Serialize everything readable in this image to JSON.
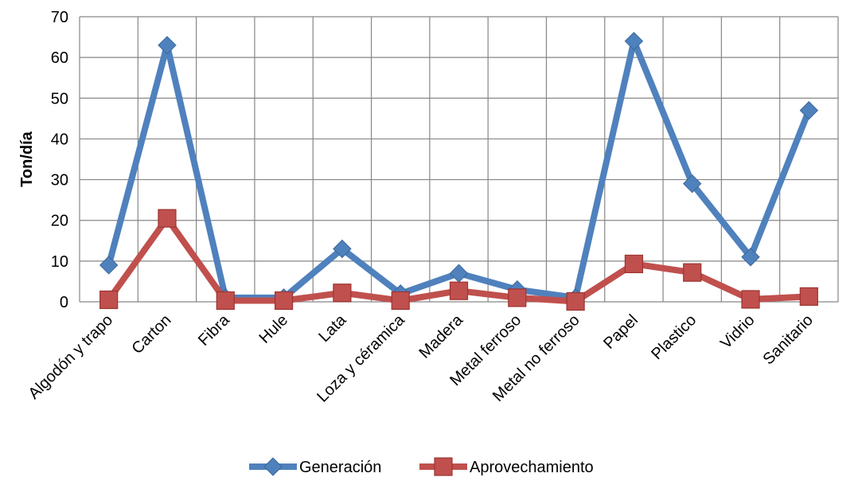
{
  "chart_data": {
    "type": "line",
    "title": "",
    "xlabel": "",
    "ylabel": "Ton/día",
    "ylim": [
      0,
      70
    ],
    "yticks": [
      0,
      10,
      20,
      30,
      40,
      50,
      60,
      70
    ],
    "grid": true,
    "legend_position": "bottom",
    "categories": [
      "Algodón y trapo",
      "Carton",
      "Fibra",
      "Hule",
      "Lata",
      "Loza y céramica",
      "Madera",
      "Metal ferroso",
      "Metal no ferroso",
      "Papel",
      "Plastico",
      "Vidrio",
      "Sanitario"
    ],
    "series": [
      {
        "name": "Generación",
        "color": "#4F81BD",
        "marker": "diamond",
        "values": [
          9,
          63,
          1,
          1,
          13,
          2,
          7,
          3,
          1,
          64,
          29,
          11,
          47
        ]
      },
      {
        "name": "Aprovechamiento",
        "color": "#C0504D",
        "marker": "square",
        "values": [
          0.5,
          20.5,
          0.3,
          0.3,
          2.2,
          0.3,
          2.7,
          1,
          0.1,
          9.3,
          7.2,
          0.6,
          1.3
        ]
      }
    ]
  }
}
